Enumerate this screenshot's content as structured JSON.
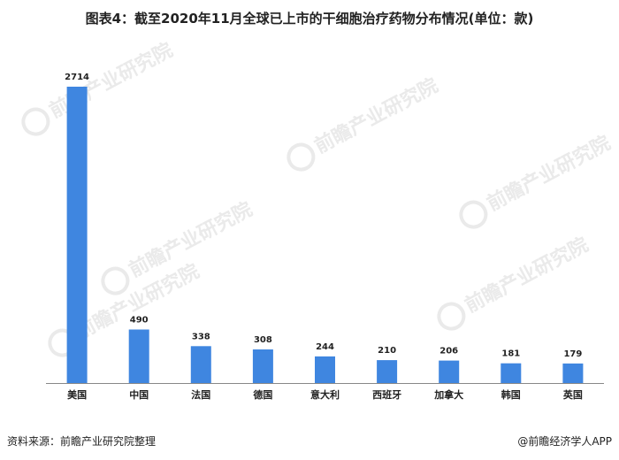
{
  "title": "图表4：截至2020年11月全球已上市的干细胞治疗药物分布情况(单位：款)",
  "source": "资料来源：前瞻产业研究院整理",
  "brand": "@前瞻经济学人APP",
  "watermark": {
    "text": "前瞻产业研究院"
  },
  "colors": {
    "bar": "#3f86e0",
    "axis": "#888888",
    "watermark": "#d9d9d9"
  },
  "chart_data": {
    "type": "bar",
    "title": "图表4：截至2020年11月全球已上市的干细胞治疗药物分布情况(单位：款)",
    "xlabel": "",
    "ylabel": "",
    "categories": [
      "美国",
      "中国",
      "法国",
      "德国",
      "意大利",
      "西班牙",
      "加拿大",
      "韩国",
      "英国"
    ],
    "values": [
      2714,
      490,
      338,
      308,
      244,
      210,
      206,
      181,
      179
    ],
    "ylim": [
      0,
      2714
    ],
    "grid": false,
    "legend": "none",
    "data_labels": true
  }
}
